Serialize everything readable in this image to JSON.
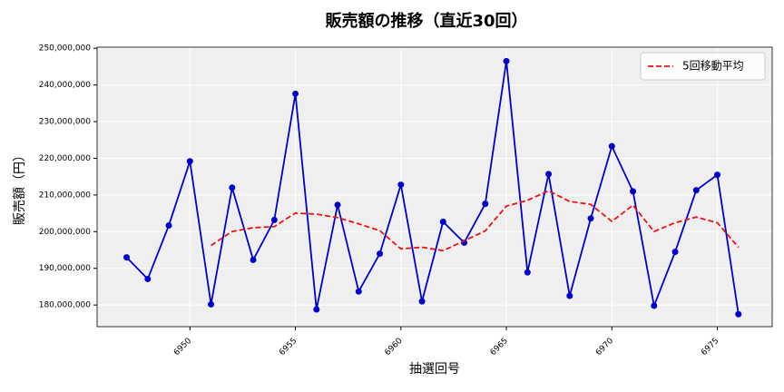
{
  "chart_data": {
    "type": "line",
    "title": "販売額の推移（直近30回）",
    "x_label": "抽選回号",
    "y_label": "販売額（円）",
    "x": [
      6947,
      6948,
      6949,
      6950,
      6951,
      6952,
      6953,
      6954,
      6955,
      6956,
      6957,
      6958,
      6959,
      6960,
      6961,
      6962,
      6963,
      6964,
      6965,
      6966,
      6967,
      6968,
      6969,
      6970,
      6971,
      6972,
      6973,
      6974,
      6975,
      6976
    ],
    "series": [
      {
        "color": "#0000cc",
        "style": "solid",
        "marker": true,
        "values": [
          193000000,
          187100000,
          201700000,
          219200000,
          180200000,
          212000000,
          192300000,
          203200000,
          237600000,
          178800000,
          207300000,
          183700000,
          194000000,
          212800000,
          181000000,
          202700000,
          197000000,
          207600000,
          246500000,
          188900000,
          215700000,
          182500000,
          203600000,
          223300000,
          211000000,
          179800000,
          194500000,
          211300000,
          215500000,
          177500000
        ]
      },
      {
        "name": "5回移動平均",
        "color": "#ee1111",
        "style": "dashed",
        "marker": false,
        "values": [
          null,
          null,
          null,
          null,
          196240000,
          200040000,
          201080000,
          201380000,
          205060000,
          204780000,
          203840000,
          202120000,
          200280000,
          195320000,
          195760000,
          194840000,
          197500000,
          200220000,
          206960000,
          208540000,
          211140000,
          208240000,
          207440000,
          202800000,
          207220000,
          200040000,
          202440000,
          203980000,
          202420000,
          195720000
        ]
      }
    ],
    "xlim": [
      6945.6,
      6977.6
    ],
    "xticks": [
      6950,
      6955,
      6960,
      6965,
      6970,
      6975
    ],
    "ylim": [
      174100000,
      250300000
    ],
    "yticks": [
      {
        "value": 180000000,
        "label": "180,000,000"
      },
      {
        "value": 190000000,
        "label": "190,000,000"
      },
      {
        "value": 200000000,
        "label": "200,000,000"
      },
      {
        "value": 210000000,
        "label": "210,000,000"
      },
      {
        "value": 220000000,
        "label": "220,000,000"
      },
      {
        "value": 230000000,
        "label": "230,000,000"
      },
      {
        "value": 240000000,
        "label": "240,000,000"
      },
      {
        "value": 250000000,
        "label": "250,000,000"
      }
    ],
    "grid": true,
    "legend": "upper right"
  }
}
